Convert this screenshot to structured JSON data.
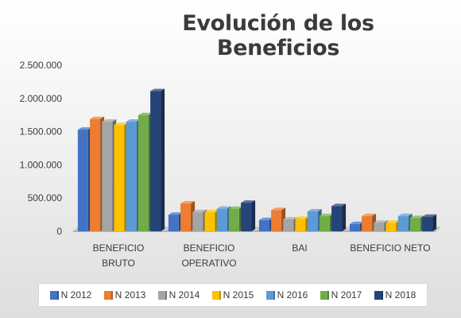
{
  "chart_data": {
    "type": "bar",
    "title": "Evolución de los Beneficios",
    "categories": [
      [
        "BENEFICIO",
        "BRUTO"
      ],
      [
        "BENEFICIO",
        "OPERATIVO"
      ],
      [
        "BAI"
      ],
      [
        "BENEFICIO NETO"
      ]
    ],
    "yticks": [
      "0",
      "500.000",
      "1.000.000",
      "1.500.000",
      "2.000.000",
      "2.500.000"
    ],
    "ylim": [
      0,
      2500000
    ],
    "grid": false,
    "legend_position": "bottom",
    "series": [
      {
        "name": "N 2012",
        "color": "#4472C4",
        "values": [
          1530000,
          250000,
          170000,
          110000
        ]
      },
      {
        "name": "N 2013",
        "color": "#ED7D31",
        "values": [
          1690000,
          420000,
          320000,
          230000
        ]
      },
      {
        "name": "N 2014",
        "color": "#A5A5A5",
        "values": [
          1650000,
          290000,
          180000,
          130000
        ]
      },
      {
        "name": "N 2015",
        "color": "#FFC000",
        "values": [
          1600000,
          290000,
          190000,
          130000
        ]
      },
      {
        "name": "N 2016",
        "color": "#5B9BD5",
        "values": [
          1650000,
          340000,
          300000,
          230000
        ]
      },
      {
        "name": "N 2017",
        "color": "#70AD47",
        "values": [
          1750000,
          340000,
          230000,
          200000
        ]
      },
      {
        "name": "N 2018",
        "color": "#264478",
        "values": [
          2110000,
          430000,
          380000,
          220000
        ]
      }
    ]
  }
}
